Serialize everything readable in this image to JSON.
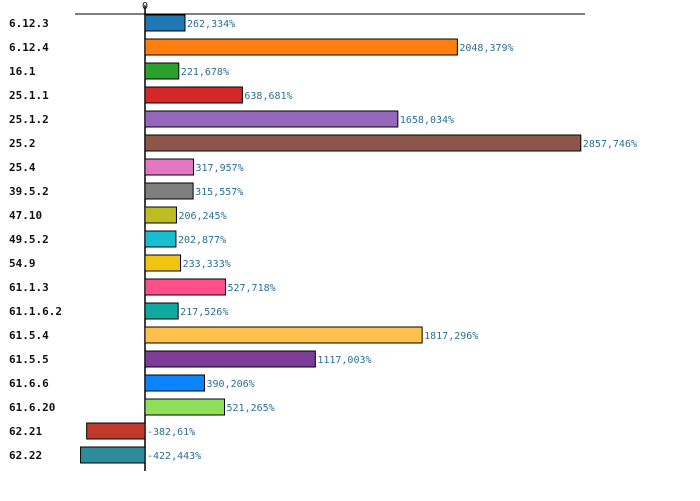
{
  "chart_data": {
    "type": "bar",
    "orientation": "horizontal",
    "categories": [
      "6.12.3",
      "6.12.4",
      "16.1",
      "25.1.1",
      "25.1.2",
      "25.2",
      "25.4",
      "39.5.2",
      "47.10",
      "49.5.2",
      "54.9",
      "61.1.3",
      "61.1.6.2",
      "61.5.4",
      "61.5.5",
      "61.6.6",
      "61.6.20",
      "62.21",
      "62.22"
    ],
    "values": [
      262.334,
      2048.379,
      221.678,
      638.681,
      1658.034,
      2857.746,
      317.957,
      315.557,
      206.245,
      202.877,
      233.333,
      527.718,
      217.526,
      1817.296,
      1117.003,
      390.206,
      521.265,
      -382.61,
      -422.443
    ],
    "value_labels": [
      "262,334%",
      "2048,379%",
      "221,678%",
      "638,681%",
      "1658,034%",
      "2857,746%",
      "317,957%",
      "315,557%",
      "206,245%",
      "202,877%",
      "233,333%",
      "527,718%",
      "217,526%",
      "1817,296%",
      "1117,003%",
      "390,206%",
      "521,265%",
      "-382,61%",
      "-422,443%"
    ],
    "colors": [
      "#1f77b4",
      "#ff7f0e",
      "#2ca02c",
      "#d62728",
      "#9467bd",
      "#8c564b",
      "#e377c2",
      "#7f7f7f",
      "#bcbd22",
      "#17becf",
      "#f1c40f",
      "#ff4f8b",
      "#10a9a0",
      "#ffc04c",
      "#7d3c98",
      "#0a84ff",
      "#8ee05a",
      "#c0392b",
      "#2e8b9a"
    ],
    "zero_tick_label": "0",
    "xlim": [
      -460,
      2900
    ],
    "title": "",
    "xlabel": "",
    "ylabel": "",
    "grid": false,
    "legend": false
  }
}
